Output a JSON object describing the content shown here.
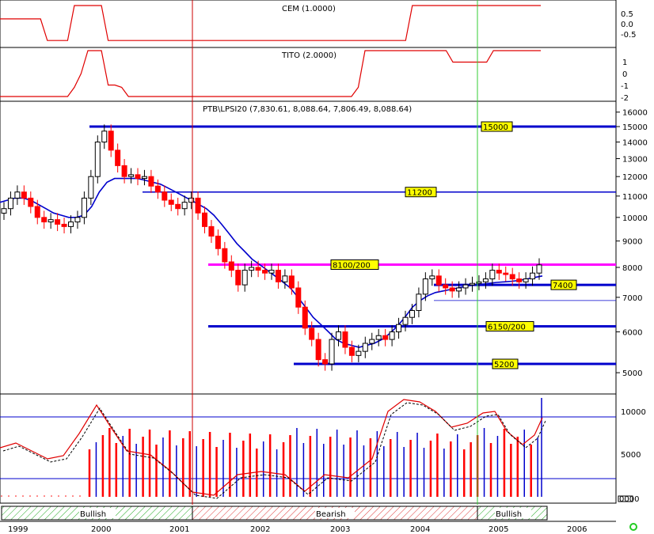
{
  "indicators": {
    "cem": {
      "title": "CEM (1.0000)",
      "ticks": [
        "0.5",
        "0.0",
        "-0.5"
      ]
    },
    "tito": {
      "title": "TITO (2.0000)",
      "ticks": [
        "1",
        "0",
        "-1",
        "-2"
      ]
    }
  },
  "main": {
    "title": "PTB\\LPSI20 (7,830.61, 8,088.64, 7,806.49, 8,088.64)",
    "price_ticks": [
      "16000",
      "15000",
      "14000",
      "13000",
      "12000",
      "11000",
      "10000",
      "9000",
      "8000",
      "7000",
      "6000",
      "5000"
    ]
  },
  "levels": [
    {
      "label": "15000",
      "color": "#0000cc",
      "price": 15000
    },
    {
      "label": "11200",
      "color": "#0000cc",
      "price": 11200
    },
    {
      "label": "8100/200",
      "color": "#ff00ff",
      "price": 8100
    },
    {
      "label": "7400",
      "color": "#0000cc",
      "price": 7400
    },
    {
      "label": "6150/200",
      "color": "#0000cc",
      "price": 6150
    },
    {
      "label": "5200",
      "color": "#0000cc",
      "price": 5200
    }
  ],
  "volume": {
    "ticks": [
      "10000",
      "5000"
    ],
    "legend_label": "0000"
  },
  "phases": [
    {
      "label": "Bullish",
      "color": "#22aa22"
    },
    {
      "label": "Bearish",
      "color": "#dd3333"
    },
    {
      "label": "Bullish",
      "color": "#22aa22"
    }
  ],
  "x_axis": {
    "years": [
      "1999",
      "2000",
      "2001",
      "2002",
      "2003",
      "2004",
      "2005",
      "2006"
    ]
  },
  "colors": {
    "up": "#ffffff",
    "down": "#ff0000",
    "ma": "#0000cc",
    "vline_red": "#cc0000",
    "vline_green": "#33cc33"
  },
  "chart_data": {
    "type": "candlestick",
    "title": "PTB\\LPSI20 (7,830.61, 8,088.64, 7,806.49, 8,088.64)",
    "y_scale": "log",
    "ylim": [
      4700,
      16200
    ],
    "x_range": [
      "1999-01",
      "2005-08"
    ],
    "closes": [
      10400,
      10900,
      11200,
      10900,
      10500,
      10000,
      9800,
      9900,
      9700,
      9600,
      9800,
      10000,
      10900,
      12000,
      14000,
      14700,
      13500,
      12600,
      12000,
      12100,
      11900,
      12000,
      11500,
      11200,
      10800,
      10600,
      10400,
      10700,
      10900,
      10200,
      9600,
      9200,
      8700,
      8200,
      7900,
      7400,
      7900,
      8000,
      7900,
      7800,
      7900,
      7500,
      7700,
      7300,
      6700,
      6100,
      5800,
      5300,
      5200,
      5800,
      6000,
      5600,
      5400,
      5500,
      5700,
      5800,
      5900,
      5800,
      6000,
      6200,
      6400,
      6600,
      7100,
      7600,
      7700,
      7400,
      7300,
      7200,
      7300,
      7400,
      7450,
      7500,
      7600,
      7900,
      7800,
      7750,
      7600,
      7500,
      7600,
      7800,
      8089
    ],
    "moving_average": [
      10700,
      10800,
      10900,
      10900,
      10800,
      10600,
      10400,
      10200,
      10100,
      10000,
      10000,
      10100,
      10500,
      11200,
      11700,
      11900,
      11900,
      11900,
      11900,
      11800,
      11700,
      11600,
      11400,
      11200,
      11000,
      10800,
      10600,
      10400,
      10100,
      9700,
      9300,
      8900,
      8600,
      8300,
      8100,
      7900,
      7700,
      7500,
      7300,
      7000,
      6700,
      6400,
      6200,
      6000,
      5800,
      5700,
      5650,
      5600,
      5650,
      5700,
      5800,
      5950,
      6150,
      6400,
      6700,
      6900,
      7050,
      7150,
      7200,
      7250,
      7300,
      7350,
      7400,
      7420,
      7450,
      7480,
      7500,
      7520,
      7550,
      7600,
      7650,
      7700
    ],
    "volume_ticks": [
      10000,
      5000
    ],
    "phases": [
      "Bullish",
      "Bearish",
      "Bullish"
    ],
    "levels": [
      15000,
      11200,
      8100,
      7400,
      6150,
      5200
    ],
    "cem": [
      0.35,
      0.35,
      0.35,
      0.35,
      0.35,
      0.35,
      0.35,
      -0.7,
      -0.7,
      -0.7,
      -0.7,
      1.0,
      1.0,
      1.0,
      1.0,
      1.0,
      -0.7,
      -0.7,
      -0.7,
      -0.7,
      -0.7,
      -0.7,
      -0.7,
      -0.7,
      -0.7,
      -0.7,
      -0.7,
      -0.7,
      -0.7,
      -0.7,
      -0.7,
      -0.7,
      -0.7,
      -0.7,
      -0.7,
      -0.7,
      -0.7,
      -0.7,
      -0.7,
      -0.7,
      -0.7,
      -0.7,
      -0.7,
      -0.7,
      -0.7,
      -0.7,
      -0.7,
      -0.7,
      -0.7,
      -0.7,
      -0.7,
      -0.7,
      -0.7,
      -0.7,
      -0.7,
      -0.7,
      -0.7,
      -0.7,
      -0.7,
      -0.7,
      -0.7,
      1.0,
      1.0,
      1.0,
      1.0,
      1.0,
      1.0,
      1.0,
      1.0,
      1.0,
      1.0,
      1.0,
      1.0,
      1.0,
      1.0,
      1.0,
      1.0,
      1.0,
      1.0,
      1.0,
      1.0
    ],
    "tito": [
      -2,
      -2,
      -2,
      -2,
      -2,
      -2,
      -2,
      -2,
      -2,
      -2,
      -2,
      -1.2,
      0,
      2,
      2,
      2,
      -1,
      -1,
      -1.2,
      -2,
      -2,
      -2,
      -2,
      -2,
      -2,
      -2,
      -2,
      -2,
      -2,
      -2,
      -2,
      -2,
      -2,
      -2,
      -2,
      -2,
      -2,
      -2,
      -2,
      -2,
      -2,
      -2,
      -2,
      -2,
      -2,
      -2,
      -2,
      -2,
      -2,
      -2,
      -2,
      -2,
      -2,
      -1.2,
      2,
      2,
      2,
      2,
      2,
      2,
      2,
      2,
      2,
      2,
      2,
      2,
      2,
      1,
      1,
      1,
      1,
      1,
      1,
      2,
      2,
      2,
      2,
      2,
      2,
      2,
      2
    ]
  }
}
